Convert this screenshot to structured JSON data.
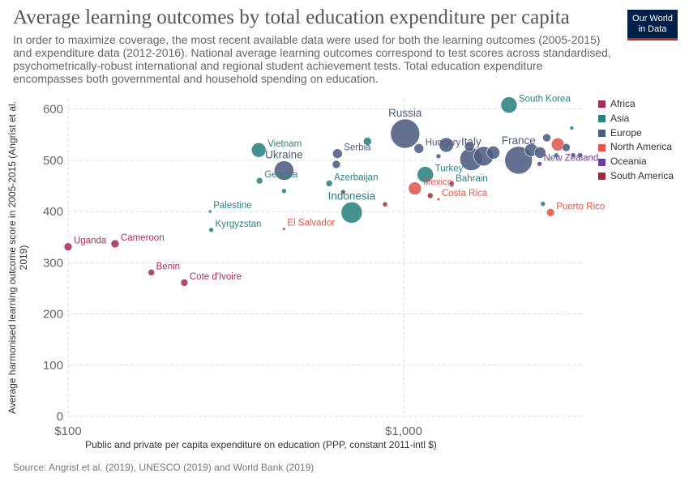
{
  "header": {
    "title": "Average learning outcomes by total education expenditure per capita",
    "subtitle": "In order to maximize coverage, the most recent available data were used for both the learning outcomes (2005-2015) and expenditure data (2012-2016). National average learning outcomes correspond to test scores across standardised, psychometrically-robust international and regional student achievement tests. Total education expenditure encompasses both governmental and household spending on education.",
    "logo_line1": "Our World",
    "logo_line2": "in Data"
  },
  "footer": {
    "source": "Source: Angrist et al. (2019), UNESCO (2019) and World Bank (2019)"
  },
  "chart_data": {
    "type": "scatter",
    "title": "Average learning outcomes by total education expenditure per capita",
    "xlabel": "Public and private per capita expenditure on education (PPP, constant 2011-intl $)",
    "ylabel": "Average harmonised learning outcome score in 2005-2015 (Angrist et al. 2019)",
    "x_scale": "log",
    "xlim": [
      100,
      3400
    ],
    "ylim": [
      0,
      620
    ],
    "x_ticks": [
      {
        "value": 100,
        "label": "$100"
      },
      {
        "value": 1000,
        "label": "$1,000"
      }
    ],
    "y_ticks": [
      {
        "value": 0,
        "label": "0"
      },
      {
        "value": 100,
        "label": "100"
      },
      {
        "value": 200,
        "label": "200"
      },
      {
        "value": 300,
        "label": "300"
      },
      {
        "value": 400,
        "label": "400"
      },
      {
        "value": 500,
        "label": "500"
      },
      {
        "value": 600,
        "label": "600"
      }
    ],
    "grid": true,
    "legend_position": "right",
    "regions": [
      {
        "name": "Africa",
        "color": "#a2305f"
      },
      {
        "name": "Asia",
        "color": "#2b8281"
      },
      {
        "name": "Europe",
        "color": "#4d5c7f"
      },
      {
        "name": "North America",
        "color": "#e0584e"
      },
      {
        "name": "Oceania",
        "color": "#6d3e91"
      },
      {
        "name": "South America",
        "color": "#a02d3e"
      }
    ],
    "points": [
      {
        "label": "Uganda",
        "region": "Africa",
        "x": 100,
        "y": 331,
        "size": 5
      },
      {
        "label": "Cameroon",
        "region": "Africa",
        "x": 138,
        "y": 337,
        "size": 5
      },
      {
        "label": "Benin",
        "region": "Africa",
        "x": 177,
        "y": 281,
        "size": 4
      },
      {
        "label": "Cote d'Ivoire",
        "region": "Africa",
        "x": 222,
        "y": 261,
        "size": 4.5
      },
      {
        "label": "Palestine",
        "region": "Asia",
        "x": 265,
        "y": 400,
        "size": 2
      },
      {
        "label": "Kyrgyzstan",
        "region": "Asia",
        "x": 267,
        "y": 364,
        "size": 3
      },
      {
        "label": "Vietnam",
        "region": "Asia",
        "x": 370,
        "y": 520,
        "size": 9
      },
      {
        "label": "Georgia",
        "region": "Asia",
        "x": 372,
        "y": 460,
        "size": 4
      },
      {
        "label": "",
        "region": "Asia",
        "x": 440,
        "y": 440,
        "size": 3
      },
      {
        "label": "Azerbaijan",
        "region": "Asia",
        "x": 600,
        "y": 455,
        "size": 4
      },
      {
        "label": "Indonesia",
        "region": "Asia",
        "x": 700,
        "y": 398,
        "size": 13
      },
      {
        "label": "",
        "region": "Asia",
        "x": 780,
        "y": 537,
        "size": 5
      },
      {
        "label": "Turkey",
        "region": "Asia",
        "x": 1160,
        "y": 472,
        "size": 10
      },
      {
        "label": "Bahrain",
        "region": "Asia",
        "x": 1390,
        "y": 452,
        "size": 3
      },
      {
        "label": "South Korea",
        "region": "Asia",
        "x": 2060,
        "y": 608,
        "size": 10
      },
      {
        "label": "",
        "region": "Asia",
        "x": 2600,
        "y": 415,
        "size": 3
      },
      {
        "label": "",
        "region": "Asia",
        "x": 3170,
        "y": 563,
        "size": 2.5
      },
      {
        "label": "",
        "region": "Asia",
        "x": 2850,
        "y": 510,
        "size": 3
      },
      {
        "label": "Ukraine",
        "region": "Europe",
        "x": 440,
        "y": 480,
        "size": 12
      },
      {
        "label": "Serbia",
        "region": "Europe",
        "x": 635,
        "y": 513,
        "size": 6
      },
      {
        "label": "",
        "region": "Europe",
        "x": 630,
        "y": 492,
        "size": 5
      },
      {
        "label": "",
        "region": "Europe",
        "x": 660,
        "y": 438,
        "size": 3
      },
      {
        "label": "Russia",
        "region": "Europe",
        "x": 1010,
        "y": 552,
        "size": 18
      },
      {
        "label": "Hungary",
        "region": "Europe",
        "x": 1110,
        "y": 523,
        "size": 6
      },
      {
        "label": "",
        "region": "Europe",
        "x": 1270,
        "y": 508,
        "size": 3
      },
      {
        "label": "",
        "region": "Europe",
        "x": 1340,
        "y": 530,
        "size": 9
      },
      {
        "label": "Italy",
        "region": "Europe",
        "x": 1590,
        "y": 502,
        "size": 14
      },
      {
        "label": "",
        "region": "Europe",
        "x": 1730,
        "y": 508,
        "size": 12
      },
      {
        "label": "",
        "region": "Europe",
        "x": 1570,
        "y": 527,
        "size": 6
      },
      {
        "label": "",
        "region": "Europe",
        "x": 1850,
        "y": 515,
        "size": 8
      },
      {
        "label": "France",
        "region": "Europe",
        "x": 2200,
        "y": 500,
        "size": 17
      },
      {
        "label": "",
        "region": "Europe",
        "x": 2400,
        "y": 520,
        "size": 8
      },
      {
        "label": "",
        "region": "Europe",
        "x": 2550,
        "y": 515,
        "size": 7
      },
      {
        "label": "",
        "region": "Europe",
        "x": 2670,
        "y": 544,
        "size": 5
      },
      {
        "label": "",
        "region": "Europe",
        "x": 3050,
        "y": 525,
        "size": 5
      },
      {
        "label": "",
        "region": "Europe",
        "x": 3350,
        "y": 510,
        "size": 3
      },
      {
        "label": "El Salvador",
        "region": "North America",
        "x": 440,
        "y": 366,
        "size": 2
      },
      {
        "label": "Mexico",
        "region": "North America",
        "x": 1080,
        "y": 445,
        "size": 8
      },
      {
        "label": "Costa Rica",
        "region": "North America",
        "x": 1270,
        "y": 424,
        "size": 2
      },
      {
        "label": "Puerto Rico",
        "region": "North America",
        "x": 2740,
        "y": 398,
        "size": 5
      },
      {
        "label": "",
        "region": "North America",
        "x": 2880,
        "y": 531,
        "size": 8
      },
      {
        "label": "New Zealand",
        "region": "Oceania",
        "x": 2540,
        "y": 493,
        "size": 3
      },
      {
        "label": "",
        "region": "Oceania",
        "x": 3200,
        "y": 510,
        "size": 3
      },
      {
        "label": "",
        "region": "South America",
        "x": 880,
        "y": 414,
        "size": 3
      },
      {
        "label": "",
        "region": "South America",
        "x": 1200,
        "y": 431,
        "size": 3.5
      },
      {
        "label": "",
        "region": "South America",
        "x": 1390,
        "y": 455,
        "size": 3
      }
    ]
  }
}
